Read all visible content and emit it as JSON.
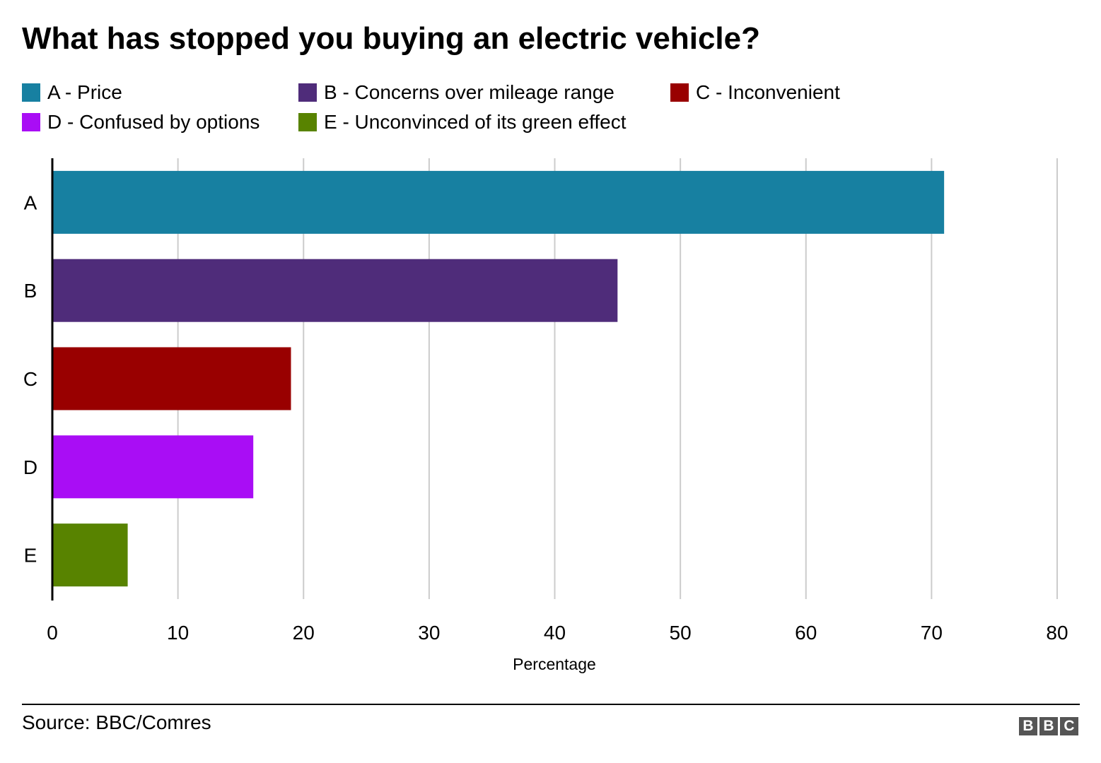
{
  "chart_data": {
    "type": "bar",
    "orientation": "horizontal",
    "title": "What has stopped you buying an electric vehicle?",
    "categories": [
      "A",
      "B",
      "C",
      "D",
      "E"
    ],
    "values": [
      71,
      45,
      19,
      16,
      6
    ],
    "colors": [
      "#1780a1",
      "#4f2c7a",
      "#990000",
      "#a90df5",
      "#588300"
    ],
    "legend": [
      {
        "label": "A - Price",
        "color": "#1780a1"
      },
      {
        "label": "B - Concerns over mileage range",
        "color": "#4f2c7a"
      },
      {
        "label": "C - Inconvenient",
        "color": "#990000"
      },
      {
        "label": "D - Confused by options",
        "color": "#a90df5"
      },
      {
        "label": "E - Unconvinced of its green effect",
        "color": "#588300"
      }
    ],
    "xlabel": "Percentage",
    "ylabel": "",
    "xlim": [
      0,
      80
    ],
    "xticks": [
      0,
      10,
      20,
      30,
      40,
      50,
      60,
      70,
      80
    ],
    "grid": true,
    "legend_position": "top"
  },
  "footer": {
    "source": "Source: BBC/Comres",
    "logo": [
      "B",
      "B",
      "C"
    ]
  }
}
